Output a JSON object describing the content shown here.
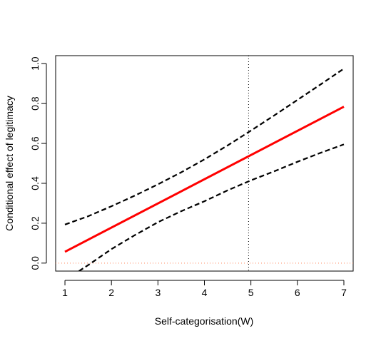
{
  "chart_data": {
    "type": "line",
    "title": "",
    "xlabel": "Self-categorisation(W)",
    "ylabel": "Conditional effect of legitimacy",
    "xlim": [
      0.8,
      7.2
    ],
    "ylim": [
      -0.04,
      1.04
    ],
    "xticks": [
      "1",
      "2",
      "3",
      "4",
      "5",
      "6",
      "7"
    ],
    "yticks": [
      "0.0",
      "0.2",
      "0.4",
      "0.6",
      "0.8",
      "1.0"
    ],
    "grid": false,
    "legend": "none",
    "series": [
      {
        "role": "estimate",
        "color": "#ff0000",
        "style": "solid",
        "points": [
          [
            1,
            0.057
          ],
          [
            7,
            0.784
          ]
        ]
      },
      {
        "role": "upper-ci",
        "color": "#000000",
        "style": "dashed",
        "points": [
          [
            1,
            0.193
          ],
          [
            1.5,
            0.235
          ],
          [
            2,
            0.285
          ],
          [
            2.5,
            0.338
          ],
          [
            3,
            0.395
          ],
          [
            3.5,
            0.455
          ],
          [
            4,
            0.52
          ],
          [
            4.5,
            0.59
          ],
          [
            5,
            0.664
          ],
          [
            5.5,
            0.74
          ],
          [
            6,
            0.818
          ],
          [
            6.5,
            0.896
          ],
          [
            7,
            0.975
          ]
        ]
      },
      {
        "role": "lower-ci",
        "color": "#000000",
        "style": "dashed",
        "points": [
          [
            1.3,
            -0.04
          ],
          [
            1.5,
            -0.01
          ],
          [
            2,
            0.07
          ],
          [
            2.5,
            0.14
          ],
          [
            3,
            0.205
          ],
          [
            3.5,
            0.26
          ],
          [
            4,
            0.31
          ],
          [
            4.5,
            0.365
          ],
          [
            5,
            0.415
          ],
          [
            5.5,
            0.46
          ],
          [
            6,
            0.508
          ],
          [
            6.5,
            0.553
          ],
          [
            7,
            0.595
          ]
        ]
      }
    ],
    "reference_lines": [
      {
        "orientation": "horizontal",
        "value": 0,
        "color": "#ff7f50",
        "style": "dotted"
      },
      {
        "orientation": "vertical",
        "value": 4.95,
        "color": "#000000",
        "style": "dotted"
      }
    ]
  }
}
